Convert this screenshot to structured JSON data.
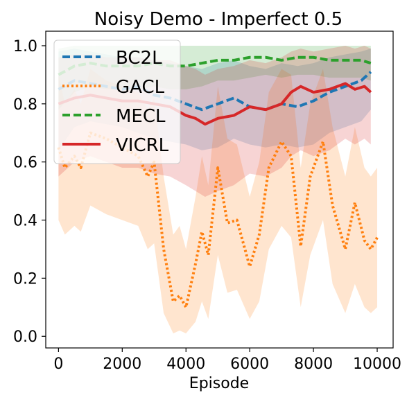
{
  "chart_data": {
    "type": "line",
    "title": "Noisy Demo - Imperfect 0.5",
    "xlabel": "Episode",
    "ylabel": "",
    "xlim": [
      -400,
      10500
    ],
    "ylim": [
      -0.04,
      1.05
    ],
    "xticks": [
      0,
      2000,
      4000,
      6000,
      8000,
      10000
    ],
    "xtick_labels": [
      "0",
      "2000",
      "4000",
      "6000",
      "8000",
      "10000"
    ],
    "yticks": [
      0.0,
      0.2,
      0.4,
      0.6,
      0.8,
      1.0
    ],
    "ytick_labels": [
      "0.0",
      "0.2",
      "0.4",
      "0.6",
      "0.8",
      "1.0"
    ],
    "grid": false,
    "legend": "upper-left",
    "series": [
      {
        "name": "BC2L",
        "color": "#1f77b4",
        "style": "dashed",
        "x": [
          0,
          500,
          1000,
          1500,
          2000,
          2500,
          3000,
          3500,
          4000,
          4500,
          5000,
          5500,
          6000,
          6500,
          7000,
          7500,
          8000,
          8500,
          9000,
          9500,
          9800
        ],
        "y": [
          0.85,
          0.88,
          0.87,
          0.86,
          0.85,
          0.86,
          0.83,
          0.82,
          0.8,
          0.78,
          0.8,
          0.82,
          0.79,
          0.78,
          0.8,
          0.79,
          0.81,
          0.84,
          0.86,
          0.88,
          0.91
        ],
        "lower": [
          0.64,
          0.72,
          0.74,
          0.73,
          0.72,
          0.7,
          0.68,
          0.67,
          0.66,
          0.64,
          0.65,
          0.68,
          0.66,
          0.65,
          0.66,
          0.65,
          0.66,
          0.7,
          0.72,
          0.74,
          0.78
        ],
        "upper": [
          0.98,
          0.99,
          0.98,
          0.97,
          0.96,
          0.96,
          0.95,
          0.94,
          0.93,
          0.92,
          0.94,
          0.95,
          0.93,
          0.92,
          0.94,
          0.93,
          0.94,
          0.96,
          0.97,
          0.98,
          0.99
        ]
      },
      {
        "name": "GACL",
        "color": "#ff7f0e",
        "style": "dotted",
        "x": [
          0,
          200,
          500,
          700,
          1000,
          1500,
          2000,
          2500,
          2800,
          3000,
          3300,
          3600,
          3800,
          4000,
          4300,
          4500,
          4700,
          5000,
          5300,
          5600,
          6000,
          6300,
          6600,
          7000,
          7300,
          7600,
          7900,
          8300,
          8600,
          9000,
          9300,
          9600,
          9800,
          10000
        ],
        "y": [
          0.65,
          0.58,
          0.62,
          0.58,
          0.7,
          0.68,
          0.65,
          0.62,
          0.55,
          0.6,
          0.3,
          0.12,
          0.14,
          0.1,
          0.25,
          0.36,
          0.28,
          0.58,
          0.39,
          0.4,
          0.24,
          0.35,
          0.58,
          0.67,
          0.62,
          0.31,
          0.55,
          0.67,
          0.45,
          0.3,
          0.46,
          0.33,
          0.3,
          0.34
        ],
        "lower": [
          0.4,
          0.35,
          0.38,
          0.36,
          0.45,
          0.42,
          0.4,
          0.38,
          0.3,
          0.32,
          0.08,
          0.01,
          0.02,
          0.01,
          0.05,
          0.12,
          0.06,
          0.28,
          0.15,
          0.16,
          0.06,
          0.12,
          0.3,
          0.38,
          0.34,
          0.1,
          0.28,
          0.4,
          0.18,
          0.08,
          0.18,
          0.1,
          0.08,
          0.1
        ],
        "upper": [
          0.9,
          0.8,
          0.85,
          0.8,
          0.92,
          0.88,
          0.86,
          0.84,
          0.78,
          0.82,
          0.55,
          0.35,
          0.38,
          0.3,
          0.48,
          0.62,
          0.52,
          0.86,
          0.68,
          0.66,
          0.48,
          0.6,
          0.84,
          0.92,
          0.9,
          0.58,
          0.8,
          0.92,
          0.72,
          0.55,
          0.72,
          0.58,
          0.55,
          0.58
        ]
      },
      {
        "name": "MECL",
        "color": "#2ca02c",
        "style": "dashed",
        "x": [
          0,
          500,
          1000,
          1500,
          2000,
          2500,
          3000,
          3500,
          4000,
          4500,
          5000,
          5500,
          6000,
          6500,
          7000,
          7500,
          8000,
          8500,
          9000,
          9500,
          9800
        ],
        "y": [
          0.9,
          0.93,
          0.94,
          0.93,
          0.93,
          0.93,
          0.94,
          0.93,
          0.93,
          0.94,
          0.95,
          0.95,
          0.96,
          0.96,
          0.95,
          0.96,
          0.96,
          0.95,
          0.95,
          0.95,
          0.94
        ],
        "lower": [
          0.78,
          0.84,
          0.86,
          0.85,
          0.85,
          0.85,
          0.86,
          0.85,
          0.85,
          0.86,
          0.88,
          0.88,
          0.89,
          0.9,
          0.89,
          0.9,
          0.9,
          0.89,
          0.89,
          0.89,
          0.88
        ],
        "upper": [
          0.99,
          1.0,
          1.0,
          1.0,
          1.0,
          1.0,
          1.0,
          1.0,
          1.0,
          1.0,
          1.0,
          1.0,
          1.0,
          1.0,
          1.0,
          1.0,
          1.0,
          1.0,
          1.0,
          1.0,
          1.0
        ]
      },
      {
        "name": "VICRL",
        "color": "#d62728",
        "style": "solid",
        "x": [
          0,
          500,
          1000,
          1500,
          2000,
          2500,
          3000,
          3500,
          4000,
          4300,
          4600,
          5000,
          5500,
          6000,
          6500,
          7000,
          7300,
          7600,
          8000,
          8500,
          9000,
          9300,
          9600,
          9800
        ],
        "y": [
          0.8,
          0.82,
          0.83,
          0.82,
          0.81,
          0.81,
          0.8,
          0.79,
          0.76,
          0.75,
          0.73,
          0.75,
          0.76,
          0.79,
          0.78,
          0.8,
          0.84,
          0.86,
          0.84,
          0.85,
          0.87,
          0.85,
          0.86,
          0.84
        ],
        "lower": [
          0.55,
          0.6,
          0.62,
          0.6,
          0.58,
          0.58,
          0.56,
          0.55,
          0.52,
          0.5,
          0.48,
          0.5,
          0.52,
          0.56,
          0.55,
          0.58,
          0.62,
          0.64,
          0.62,
          0.64,
          0.68,
          0.66,
          0.68,
          0.66
        ],
        "upper": [
          0.96,
          0.97,
          0.97,
          0.96,
          0.96,
          0.96,
          0.95,
          0.95,
          0.93,
          0.92,
          0.9,
          0.92,
          0.93,
          0.95,
          0.94,
          0.96,
          0.98,
          0.99,
          0.98,
          0.99,
          1.0,
          0.99,
          1.0,
          0.99
        ]
      }
    ]
  }
}
